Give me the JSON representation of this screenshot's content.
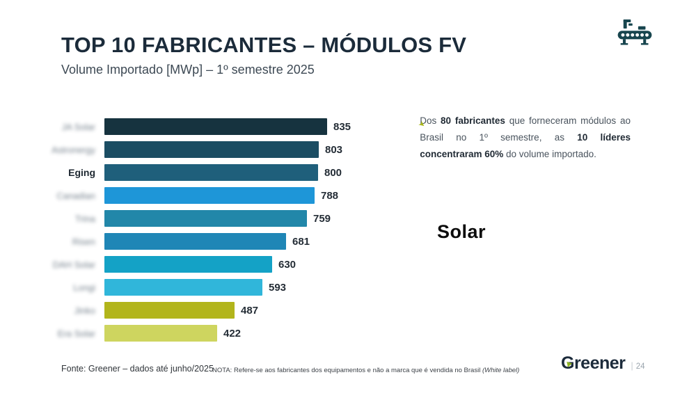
{
  "header": {
    "title": "TOP 10 FABRICANTES – MÓDULOS FV",
    "subtitle": "Volume Importado [MWp] – 1º semestre 2025"
  },
  "chart_data": {
    "type": "bar",
    "orientation": "horizontal",
    "title": "TOP 10 FABRICANTES – MÓDULOS FV",
    "subtitle": "Volume Importado [MWp] – 1º semestre 2025",
    "unit": "MWp",
    "categories": [
      "JA Solar",
      "Astronergy",
      "Eging",
      "Canadian",
      "Trina",
      "Risen",
      "DAH Solar",
      "Longi",
      "Jinko",
      "Era Solar"
    ],
    "values": [
      835,
      803,
      800,
      788,
      759,
      681,
      630,
      593,
      487,
      422
    ],
    "bar_colors": [
      "#16333f",
      "#1b4d63",
      "#1f5f7b",
      "#1e96d8",
      "#2287a9",
      "#1f86b6",
      "#14a2c6",
      "#30b6da",
      "#b2b51b",
      "#ced55f"
    ],
    "blurred_labels": [
      true,
      true,
      false,
      true,
      true,
      true,
      true,
      true,
      true,
      true
    ],
    "value_labels_shown": true,
    "grid": false,
    "legend": false,
    "xlim": [
      0,
      870
    ]
  },
  "annotation": {
    "bullet_icon": "arrow-bullet",
    "bullet_glyph": "➤",
    "bullet_color": "#a9b71c",
    "segments": [
      {
        "t": "Dos ",
        "b": false
      },
      {
        "t": "80 fabricantes",
        "b": true
      },
      {
        "t": " que forneceram módulos ao Brasil no 1º semestre, as ",
        "b": false
      },
      {
        "t": "10 líderes",
        "b": true
      },
      {
        "t": " ",
        "b": false
      },
      {
        "t": "concentraram 60%",
        "b": true
      },
      {
        "t": " do volume importado.",
        "b": false
      }
    ]
  },
  "overlay": {
    "text": "Solar"
  },
  "footer": {
    "source": "Fonte: Greener – dados até junho/2025",
    "note_segments": [
      {
        "t": "NOTA: Refere-se aos fabricantes dos equipamentos e não a marca que é vendida no Brasil ",
        "i": false
      },
      {
        "t": "(White label)",
        "i": true
      }
    ],
    "logo_text": "Greener",
    "page_number": "24"
  },
  "colors": {
    "title": "#1b2b3a",
    "icon": "#17454e",
    "accent_green": "#a9b71c",
    "background": "#ffffff"
  }
}
